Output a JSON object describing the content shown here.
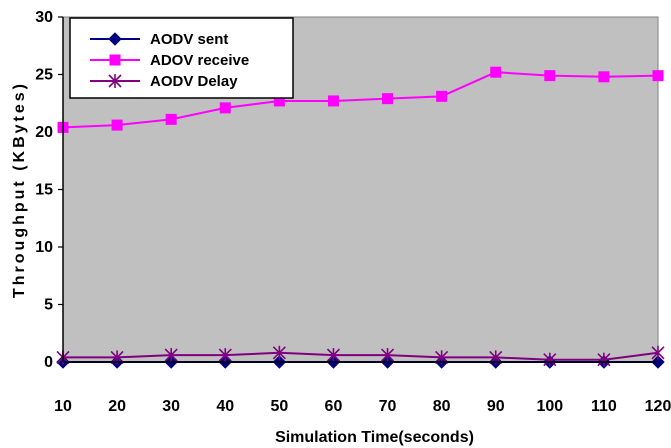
{
  "chart_data": {
    "type": "line",
    "title": "",
    "xlabel": "Simulation Time(seconds)",
    "ylabel": "Throughput (KBytes)",
    "x": [
      10,
      20,
      30,
      40,
      50,
      60,
      70,
      80,
      90,
      100,
      110,
      120
    ],
    "ylim": [
      0,
      30
    ],
    "yticks": [
      0,
      5,
      10,
      15,
      20,
      25,
      30
    ],
    "grid": false,
    "plot_background": "#c0c0c0",
    "legend_position": "top-left",
    "series": [
      {
        "name": "AODV sent",
        "marker": "diamond",
        "color": "#000080",
        "values": [
          0,
          0,
          0,
          0,
          0,
          0,
          0,
          0,
          0,
          0,
          0,
          0
        ]
      },
      {
        "name": "ADOV receive",
        "marker": "square",
        "color": "#ff00ff",
        "values": [
          20.4,
          20.6,
          21.1,
          22.1,
          22.7,
          22.7,
          22.9,
          23.1,
          25.2,
          24.9,
          24.8,
          24.9
        ]
      },
      {
        "name": "AODV Delay",
        "marker": "asterisk",
        "color": "#800080",
        "values": [
          0.4,
          0.4,
          0.6,
          0.6,
          0.8,
          0.6,
          0.6,
          0.4,
          0.4,
          0.2,
          0.2,
          0.8
        ]
      }
    ]
  }
}
